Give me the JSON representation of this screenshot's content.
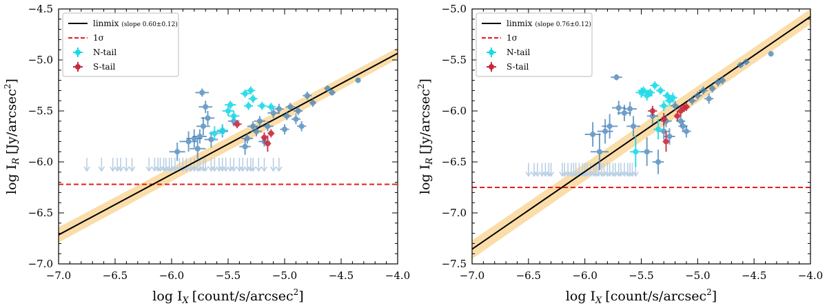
{
  "chart_data": [
    {
      "type": "scatter",
      "panel": "left",
      "xlabel_main": "log I",
      "xlabel_sub": "X",
      "xlabel_unit": "[count/s/arcsec",
      "xlabel_sup": "2",
      "xlabel_close": "]",
      "ylabel_main": "log I",
      "ylabel_sub": "R",
      "ylabel_unit": "[Jy/arcsec",
      "ylabel_sup": "2",
      "ylabel_close": "]",
      "xlim": [
        -7.0,
        -4.0
      ],
      "ylim": [
        -7.0,
        -4.5
      ],
      "xticks": [
        -7.0,
        -6.5,
        -6.0,
        -5.5,
        -5.0,
        -4.5,
        -4.0
      ],
      "xtick_labels": [
        "−7.0",
        "−6.5",
        "−6.0",
        "−5.5",
        "−5.0",
        "−4.5",
        "−4.0"
      ],
      "yticks": [
        -7.0,
        -6.5,
        -6.0,
        -5.5,
        -5.0,
        -4.5
      ],
      "ytick_labels": [
        "−7.0",
        "−6.5",
        "−6.0",
        "−5.5",
        "−5.0",
        "−4.5"
      ],
      "legend": {
        "location": "upper-left",
        "entries": [
          {
            "label": "linmix",
            "note": "(slope 0.60±0.12)",
            "kind": "solid-line",
            "color": "#000000"
          },
          {
            "label": "1σ",
            "note": "",
            "kind": "dashed-line",
            "color": "#e41a1c"
          },
          {
            "label": "N-tail",
            "note": "",
            "kind": "marker",
            "color": "#1ad9e8"
          },
          {
            "label": "S-tail",
            "note": "",
            "kind": "marker",
            "color": "#c8283c"
          }
        ]
      },
      "fit": {
        "slope": 0.6,
        "slope_err": 0.12,
        "x": [
          -7.0,
          -4.0
        ],
        "y": [
          -6.715,
          -4.935
        ],
        "band_lower": [
          -6.79,
          -4.99
        ],
        "band_upper": [
          -6.64,
          -4.88
        ]
      },
      "sigma_level": -6.22,
      "series": [
        {
          "name": "detections",
          "color": "#3f7fb8",
          "points": [
            {
              "x": -5.95,
              "y": -5.9,
              "xe": 0.07,
              "ye": 0.09
            },
            {
              "x": -5.85,
              "y": -5.8,
              "xe": 0.08,
              "ye": 0.1
            },
            {
              "x": -5.8,
              "y": -5.77,
              "xe": 0.07,
              "ye": 0.09
            },
            {
              "x": -5.77,
              "y": -5.87,
              "xe": 0.07,
              "ye": 0.1
            },
            {
              "x": -5.75,
              "y": -5.75,
              "xe": 0.06,
              "ye": 0.07
            },
            {
              "x": -5.72,
              "y": -5.65,
              "xe": 0.06,
              "ye": 0.09
            },
            {
              "x": -5.73,
              "y": -5.32,
              "xe": 0.06,
              "ye": 0.04
            },
            {
              "x": -5.7,
              "y": -5.46,
              "xe": 0.06,
              "ye": 0.06
            },
            {
              "x": -5.68,
              "y": -5.57,
              "xe": 0.06,
              "ye": 0.07
            },
            {
              "x": -5.65,
              "y": -5.78,
              "xe": 0.06,
              "ye": 0.08
            },
            {
              "x": -5.55,
              "y": -5.7,
              "xe": 0.05,
              "ye": 0.06
            },
            {
              "x": -5.45,
              "y": -5.6,
              "xe": 0.05,
              "ye": 0.05
            },
            {
              "x": -5.35,
              "y": -5.85,
              "xe": 0.05,
              "ye": 0.08
            },
            {
              "x": -5.33,
              "y": -5.77,
              "xe": 0.05,
              "ye": 0.05
            },
            {
              "x": -5.28,
              "y": -5.65,
              "xe": 0.05,
              "ye": 0.05
            },
            {
              "x": -5.25,
              "y": -5.7,
              "xe": 0.05,
              "ye": 0.05
            },
            {
              "x": -5.22,
              "y": -5.6,
              "xe": 0.05,
              "ye": 0.05
            },
            {
              "x": -5.18,
              "y": -5.8,
              "xe": 0.05,
              "ye": 0.05
            },
            {
              "x": -5.15,
              "y": -5.65,
              "xe": 0.05,
              "ye": 0.05
            },
            {
              "x": -5.1,
              "y": -5.52,
              "xe": 0.05,
              "ye": 0.05
            },
            {
              "x": -5.05,
              "y": -5.48,
              "xe": 0.04,
              "ye": 0.05
            },
            {
              "x": -5.0,
              "y": -5.68,
              "xe": 0.04,
              "ye": 0.05
            },
            {
              "x": -4.98,
              "y": -5.55,
              "xe": 0.04,
              "ye": 0.04
            },
            {
              "x": -4.95,
              "y": -5.46,
              "xe": 0.04,
              "ye": 0.04
            },
            {
              "x": -4.9,
              "y": -5.58,
              "xe": 0.04,
              "ye": 0.05
            },
            {
              "x": -4.88,
              "y": -5.5,
              "xe": 0.04,
              "ye": 0.04
            },
            {
              "x": -4.85,
              "y": -5.65,
              "xe": 0.04,
              "ye": 0.05
            },
            {
              "x": -4.8,
              "y": -5.35,
              "xe": 0.04,
              "ye": 0.04
            },
            {
              "x": -4.75,
              "y": -5.42,
              "xe": 0.03,
              "ye": 0.04
            },
            {
              "x": -4.62,
              "y": -5.28,
              "xe": 0.03,
              "ye": 0.03
            },
            {
              "x": -4.58,
              "y": -5.32,
              "xe": 0.03,
              "ye": 0.03
            },
            {
              "x": -4.35,
              "y": -5.2,
              "xe": 0.02,
              "ye": 0.02
            }
          ]
        },
        {
          "name": "N-tail",
          "color": "#1ad9e8",
          "points": [
            {
              "x": -5.62,
              "y": -5.72,
              "xe": 0.05,
              "ye": 0.07
            },
            {
              "x": -5.55,
              "y": -5.69,
              "xe": 0.05,
              "ye": 0.06
            },
            {
              "x": -5.5,
              "y": -5.5,
              "xe": 0.05,
              "ye": 0.05
            },
            {
              "x": -5.48,
              "y": -5.44,
              "xe": 0.05,
              "ye": 0.04
            },
            {
              "x": -5.45,
              "y": -5.55,
              "xe": 0.05,
              "ye": 0.05
            },
            {
              "x": -5.35,
              "y": -5.33,
              "xe": 0.04,
              "ye": 0.04
            },
            {
              "x": -5.3,
              "y": -5.3,
              "xe": 0.04,
              "ye": 0.04
            },
            {
              "x": -5.32,
              "y": -5.45,
              "xe": 0.04,
              "ye": 0.04
            },
            {
              "x": -5.28,
              "y": -5.38,
              "xe": 0.04,
              "ye": 0.04
            },
            {
              "x": -5.2,
              "y": -5.45,
              "xe": 0.04,
              "ye": 0.04
            },
            {
              "x": -5.12,
              "y": -5.46,
              "xe": 0.04,
              "ye": 0.04
            }
          ]
        },
        {
          "name": "S-tail",
          "color": "#c8283c",
          "points": [
            {
              "x": -5.42,
              "y": -5.63,
              "xe": 0.04,
              "ye": 0.04
            },
            {
              "x": -5.18,
              "y": -5.76,
              "xe": 0.03,
              "ye": 0.05
            },
            {
              "x": -5.15,
              "y": -5.82,
              "xe": 0.03,
              "ye": 0.08
            },
            {
              "x": -5.12,
              "y": -5.72,
              "xe": 0.03,
              "ye": 0.04
            }
          ]
        }
      ],
      "upper_limits": {
        "y": -6.0,
        "color": "#b8cfe4",
        "x": [
          -6.75,
          -6.62,
          -6.52,
          -6.48,
          -6.45,
          -6.4,
          -6.35,
          -6.2,
          -6.15,
          -6.12,
          -6.1,
          -6.07,
          -6.05,
          -6.02,
          -6.0,
          -5.97,
          -5.93,
          -5.9,
          -5.87,
          -5.83,
          -5.8,
          -5.77,
          -5.75,
          -5.72,
          -5.7,
          -5.65,
          -5.62,
          -5.58,
          -5.55,
          -5.52,
          -5.48,
          -5.45,
          -5.4,
          -5.37,
          -5.33,
          -5.3,
          -5.28,
          -5.23,
          -5.18,
          -5.1,
          -5.05
        ]
      }
    },
    {
      "type": "scatter",
      "panel": "right",
      "xlabel_main": "log I",
      "xlabel_sub": "X",
      "xlabel_unit": "[count/s/arcsec",
      "xlabel_sup": "2",
      "xlabel_close": "]",
      "ylabel_main": "log I",
      "ylabel_sub": "R",
      "ylabel_unit": "[Jy/arcsec",
      "ylabel_sup": "2",
      "ylabel_close": "]",
      "xlim": [
        -7.0,
        -4.0
      ],
      "ylim": [
        -7.5,
        -5.0
      ],
      "xticks": [
        -7.0,
        -6.5,
        -6.0,
        -5.5,
        -5.0,
        -4.5,
        -4.0
      ],
      "xtick_labels": [
        "−7.0",
        "−6.5",
        "−6.0",
        "−5.5",
        "−5.0",
        "−4.5",
        "−4.0"
      ],
      "yticks": [
        -7.5,
        -7.0,
        -6.5,
        -6.0,
        -5.5,
        -5.0
      ],
      "ytick_labels": [
        "−7.5",
        "−7.0",
        "−6.5",
        "−6.0",
        "−5.5",
        "−5.0"
      ],
      "legend": {
        "location": "upper-left",
        "entries": [
          {
            "label": "linmix",
            "note": "(slope 0.76±0.12)",
            "kind": "solid-line",
            "color": "#000000"
          },
          {
            "label": "1σ",
            "note": "",
            "kind": "dashed-line",
            "color": "#e41a1c"
          },
          {
            "label": "N-tail",
            "note": "",
            "kind": "marker",
            "color": "#1ad9e8"
          },
          {
            "label": "S-tail",
            "note": "",
            "kind": "marker",
            "color": "#c8283c"
          }
        ]
      },
      "fit": {
        "slope": 0.76,
        "slope_err": 0.12,
        "x": [
          -7.0,
          -4.0
        ],
        "y": [
          -7.355,
          -5.075
        ],
        "band_lower": [
          -7.45,
          -5.15
        ],
        "band_upper": [
          -7.27,
          -5.0
        ]
      },
      "sigma_level": -6.75,
      "series": [
        {
          "name": "detections",
          "color": "#3f7fb8",
          "points": [
            {
              "x": -5.93,
              "y": -6.23,
              "xe": 0.07,
              "ye": 0.12
            },
            {
              "x": -5.87,
              "y": -6.4,
              "xe": 0.08,
              "ye": 0.18
            },
            {
              "x": -5.82,
              "y": -6.2,
              "xe": 0.07,
              "ye": 0.12
            },
            {
              "x": -5.78,
              "y": -6.15,
              "xe": 0.07,
              "ye": 0.12
            },
            {
              "x": -5.72,
              "y": -5.67,
              "xe": 0.05,
              "ye": 0.03
            },
            {
              "x": -5.7,
              "y": -5.97,
              "xe": 0.06,
              "ye": 0.07
            },
            {
              "x": -5.65,
              "y": -6.02,
              "xe": 0.06,
              "ye": 0.08
            },
            {
              "x": -5.6,
              "y": -5.98,
              "xe": 0.06,
              "ye": 0.07
            },
            {
              "x": -5.57,
              "y": -6.15,
              "xe": 0.06,
              "ye": 0.1
            },
            {
              "x": -5.45,
              "y": -6.4,
              "xe": 0.05,
              "ye": 0.14
            },
            {
              "x": -5.4,
              "y": -6.05,
              "xe": 0.05,
              "ye": 0.08
            },
            {
              "x": -5.35,
              "y": -6.5,
              "xe": 0.05,
              "ye": 0.12
            },
            {
              "x": -5.3,
              "y": -6.2,
              "xe": 0.05,
              "ye": 0.08
            },
            {
              "x": -5.28,
              "y": -6.1,
              "xe": 0.05,
              "ye": 0.06
            },
            {
              "x": -5.25,
              "y": -6.25,
              "xe": 0.05,
              "ye": 0.08
            },
            {
              "x": -5.2,
              "y": -5.95,
              "xe": 0.04,
              "ye": 0.05
            },
            {
              "x": -5.15,
              "y": -6.1,
              "xe": 0.04,
              "ye": 0.05
            },
            {
              "x": -5.13,
              "y": -6.15,
              "xe": 0.04,
              "ye": 0.05
            },
            {
              "x": -5.1,
              "y": -6.2,
              "xe": 0.04,
              "ye": 0.06
            },
            {
              "x": -5.05,
              "y": -5.9,
              "xe": 0.04,
              "ye": 0.04
            },
            {
              "x": -5.0,
              "y": -5.85,
              "xe": 0.04,
              "ye": 0.04
            },
            {
              "x": -4.95,
              "y": -5.8,
              "xe": 0.04,
              "ye": 0.04
            },
            {
              "x": -4.9,
              "y": -5.88,
              "xe": 0.04,
              "ye": 0.05
            },
            {
              "x": -4.87,
              "y": -5.78,
              "xe": 0.03,
              "ye": 0.04
            },
            {
              "x": -4.82,
              "y": -5.72,
              "xe": 0.03,
              "ye": 0.04
            },
            {
              "x": -4.78,
              "y": -5.7,
              "xe": 0.03,
              "ye": 0.04
            },
            {
              "x": -4.62,
              "y": -5.55,
              "xe": 0.03,
              "ye": 0.03
            },
            {
              "x": -4.57,
              "y": -5.52,
              "xe": 0.03,
              "ye": 0.03
            },
            {
              "x": -4.35,
              "y": -5.44,
              "xe": 0.02,
              "ye": 0.02
            }
          ]
        },
        {
          "name": "N-tail",
          "color": "#1ad9e8",
          "points": [
            {
              "x": -5.55,
              "y": -6.4,
              "xe": 0.05,
              "ye": 0.15
            },
            {
              "x": -5.5,
              "y": -5.82,
              "xe": 0.05,
              "ye": 0.05
            },
            {
              "x": -5.48,
              "y": -5.8,
              "xe": 0.05,
              "ye": 0.04
            },
            {
              "x": -5.45,
              "y": -5.85,
              "xe": 0.05,
              "ye": 0.05
            },
            {
              "x": -5.42,
              "y": -5.82,
              "xe": 0.04,
              "ye": 0.04
            },
            {
              "x": -5.38,
              "y": -5.75,
              "xe": 0.04,
              "ye": 0.04
            },
            {
              "x": -5.35,
              "y": -6.18,
              "xe": 0.04,
              "ye": 0.1
            },
            {
              "x": -5.33,
              "y": -5.8,
              "xe": 0.04,
              "ye": 0.04
            },
            {
              "x": -5.3,
              "y": -5.95,
              "xe": 0.04,
              "ye": 0.05
            },
            {
              "x": -5.27,
              "y": -5.85,
              "xe": 0.04,
              "ye": 0.04
            },
            {
              "x": -5.25,
              "y": -5.9,
              "xe": 0.04,
              "ye": 0.05
            },
            {
              "x": -5.22,
              "y": -5.87,
              "xe": 0.04,
              "ye": 0.05
            }
          ]
        },
        {
          "name": "S-tail",
          "color": "#c8283c",
          "points": [
            {
              "x": -5.4,
              "y": -6.0,
              "xe": 0.04,
              "ye": 0.05
            },
            {
              "x": -5.3,
              "y": -6.08,
              "xe": 0.03,
              "ye": 0.06
            },
            {
              "x": -5.28,
              "y": -6.3,
              "xe": 0.03,
              "ye": 0.1
            },
            {
              "x": -5.18,
              "y": -6.05,
              "xe": 0.03,
              "ye": 0.05
            },
            {
              "x": -5.15,
              "y": -6.0,
              "xe": 0.03,
              "ye": 0.05
            },
            {
              "x": -5.12,
              "y": -5.97,
              "xe": 0.03,
              "ye": 0.04
            },
            {
              "x": -5.1,
              "y": -5.96,
              "xe": 0.03,
              "ye": 0.04
            }
          ]
        }
      ],
      "upper_limits": {
        "y": -6.55,
        "color": "#b8cfe4",
        "x": [
          -6.5,
          -6.45,
          -6.42,
          -6.38,
          -6.35,
          -6.32,
          -6.3,
          -6.2,
          -6.18,
          -6.15,
          -6.12,
          -6.1,
          -6.08,
          -6.05,
          -6.02,
          -6.0,
          -5.98,
          -5.95,
          -5.92,
          -5.9,
          -5.88,
          -5.85,
          -5.83,
          -5.8,
          -5.78,
          -5.75,
          -5.73,
          -5.7,
          -5.68,
          -5.65,
          -5.62,
          -5.6,
          -5.58,
          -5.55
        ]
      }
    }
  ]
}
